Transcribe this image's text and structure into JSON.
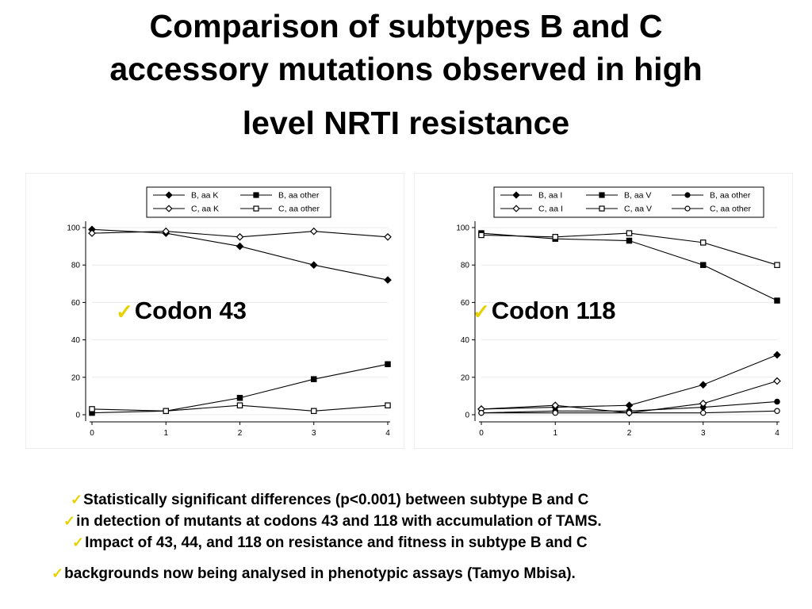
{
  "title": {
    "line1": "Comparison of subtypes B and C",
    "line2": "accessory mutations observed in high",
    "line3": "level NRTI resistance"
  },
  "overlays": {
    "codon43": "Codon 43",
    "codon118": "Codon 118",
    "check_color": "#e6d200"
  },
  "notes": [
    "Statistically significant differences (p<0.001) between subtype B and C",
    "in detection of mutants at codons 43 and 118 with accumulation of TAMS.",
    "Impact of 43, 44, and 118 on resistance and fitness in subtype B and C",
    "backgrounds now being analysed in phenotypic assays (Tamyo Mbisa)."
  ],
  "chart_data": [
    {
      "type": "line",
      "x": [
        0,
        1,
        2,
        3,
        4
      ],
      "xlim": [
        0,
        4
      ],
      "ylim": [
        0,
        100
      ],
      "xticks": [
        "0",
        "1",
        "2",
        "3",
        "4"
      ],
      "yticks": [
        "0",
        "20",
        "40",
        "60",
        "80",
        "100"
      ],
      "grid": true,
      "legend": "top",
      "series": [
        {
          "name": "B, aa K",
          "marker": "diamond-filled",
          "values": [
            99,
            97,
            90,
            80,
            72
          ]
        },
        {
          "name": "B, aa other",
          "marker": "square-filled",
          "values": [
            1,
            2,
            9,
            19,
            27
          ]
        },
        {
          "name": "C, aa K",
          "marker": "diamond-open",
          "values": [
            97,
            98,
            95,
            98,
            95
          ]
        },
        {
          "name": "C, aa other",
          "marker": "square-open",
          "values": [
            3,
            2,
            5,
            2,
            5
          ]
        }
      ]
    },
    {
      "type": "line",
      "x": [
        0,
        1,
        2,
        3,
        4
      ],
      "xlim": [
        0,
        4
      ],
      "ylim": [
        0,
        100
      ],
      "xticks": [
        "0",
        "1",
        "2",
        "3",
        "4"
      ],
      "yticks": [
        "0",
        "20",
        "40",
        "60",
        "80",
        "100"
      ],
      "grid": true,
      "legend": "top",
      "series": [
        {
          "name": "B, aa I",
          "marker": "diamond-filled",
          "values": [
            3,
            4,
            5,
            16,
            32
          ]
        },
        {
          "name": "B, aa V",
          "marker": "square-filled",
          "values": [
            97,
            94,
            93,
            80,
            61
          ]
        },
        {
          "name": "B, aa other",
          "marker": "circle-filled",
          "values": [
            1,
            2,
            2,
            4,
            7
          ]
        },
        {
          "name": "C, aa I",
          "marker": "diamond-open",
          "values": [
            3,
            5,
            1,
            6,
            18
          ]
        },
        {
          "name": "C, aa V",
          "marker": "square-open",
          "values": [
            96,
            95,
            97,
            92,
            80
          ]
        },
        {
          "name": "C, aa other",
          "marker": "circle-open",
          "values": [
            1,
            1,
            1,
            1,
            2
          ]
        }
      ]
    }
  ]
}
